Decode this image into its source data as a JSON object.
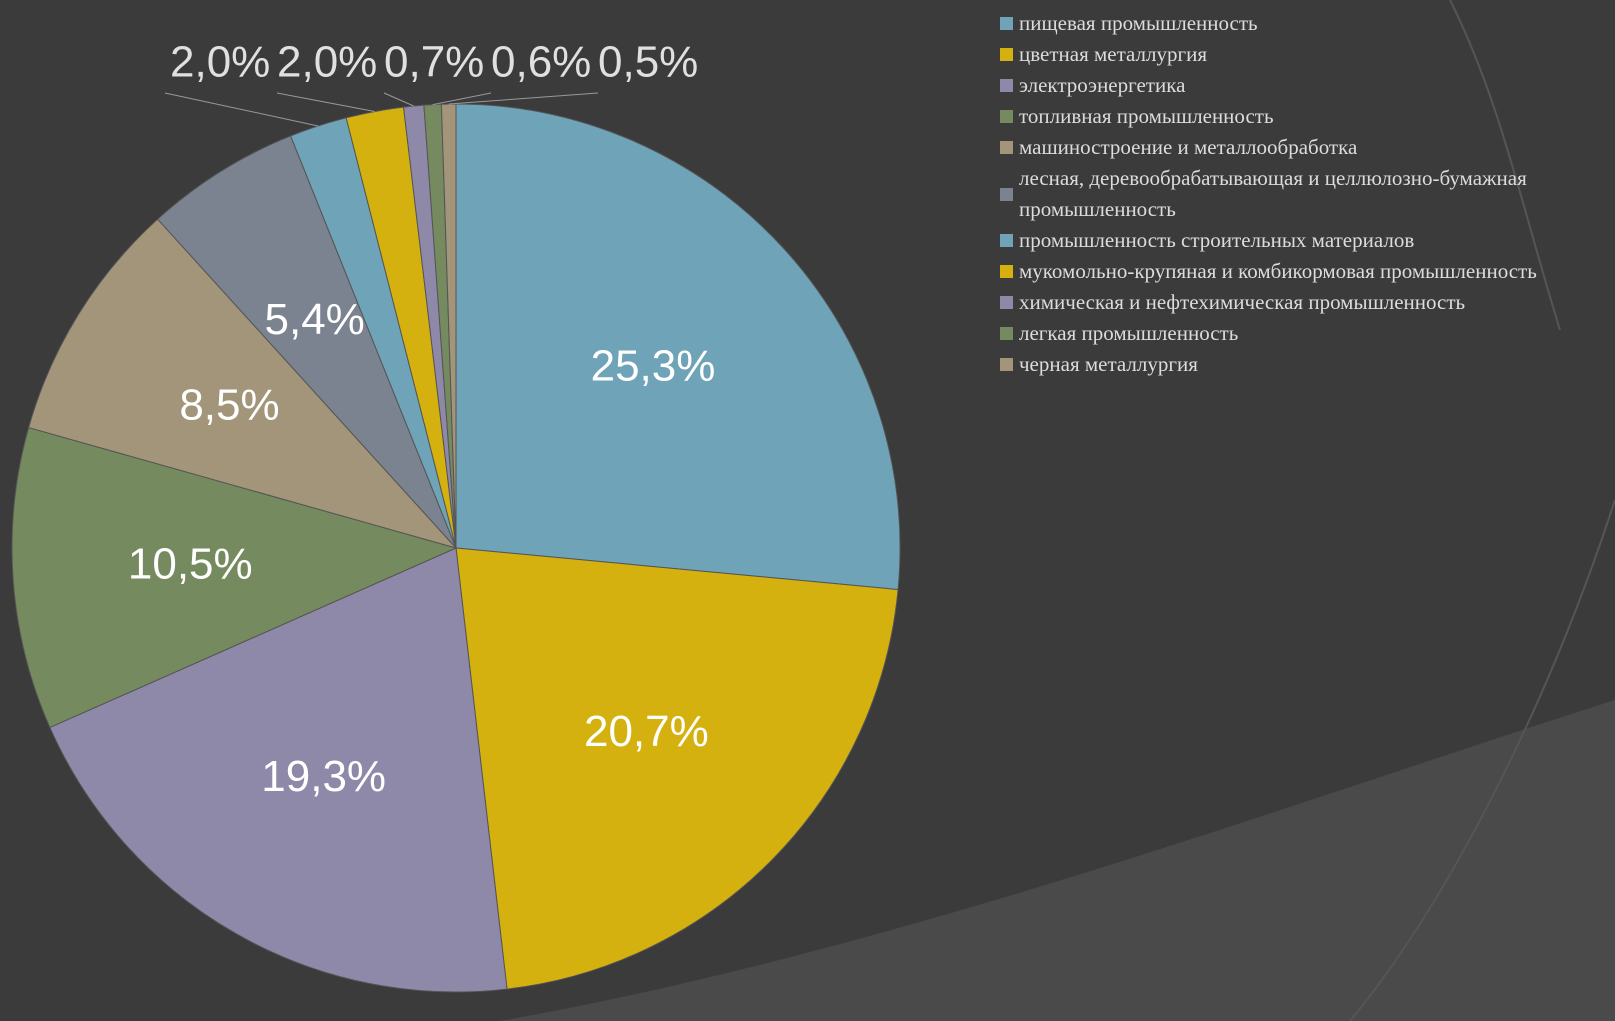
{
  "chart_data": {
    "type": "pie",
    "categories": [
      "пищевая промышленность",
      "цветная металлургия",
      "электроэнергетика",
      "топливная промышленность",
      "машиностроение и металлообработка",
      "лесная, деревообрабатывающая и целлюлозно-бумажная промышленность",
      "промышленность строительных материалов",
      "мукомольно-крупяная и комбикормовая промышленность",
      "химическая и нефтехимическая промышленность",
      "легкая промышленность",
      "черная металлургия"
    ],
    "values": [
      25.3,
      20.7,
      19.3,
      10.5,
      8.5,
      5.4,
      2.0,
      2.0,
      0.7,
      0.6,
      0.5
    ],
    "value_labels": [
      "25,3%",
      "20,7%",
      "19,3%",
      "10,5%",
      "8,5%",
      "5,4%",
      "2,0%",
      "2,0%",
      "0,7%",
      "0,6%",
      "0,5%"
    ],
    "colors": [
      "#6fa3b8",
      "#d4b10e",
      "#8e89a8",
      "#758a5e",
      "#a3957a",
      "#7b8290",
      "#6fa3b8",
      "#d4b10e",
      "#8e89a8",
      "#758a5e",
      "#a3957a"
    ],
    "legend": "right"
  }
}
